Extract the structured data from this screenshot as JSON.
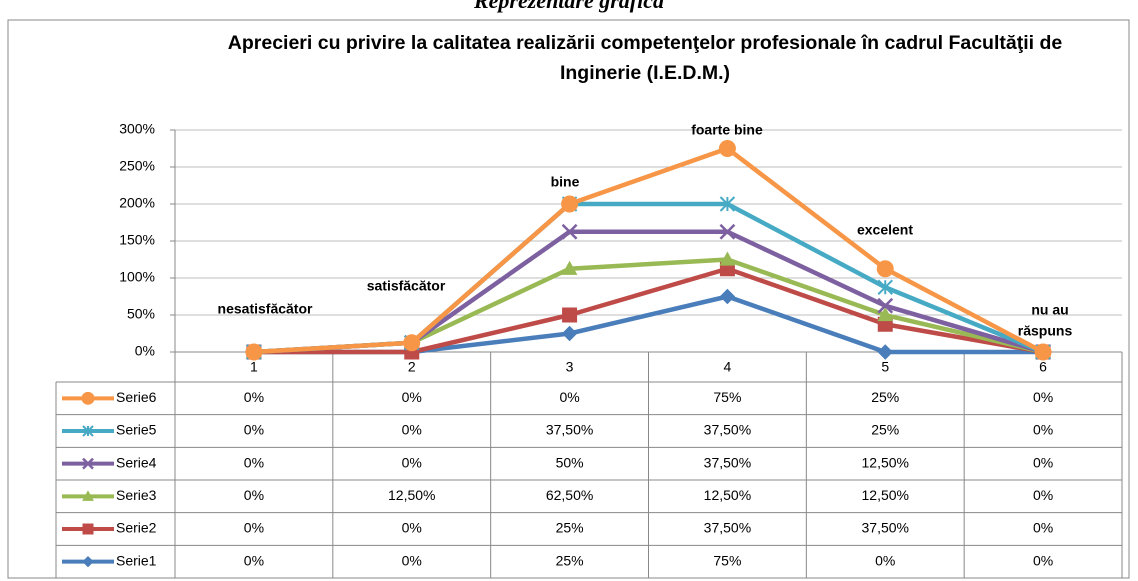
{
  "heading": "Reprezentare grafică",
  "chart_data": {
    "type": "stacked-line",
    "title": "Aprecieri cu privire la calitatea realizării competenţelor profesionale în cadrul Facultăţii de Inginerie (I.E.D.M.)",
    "categories": [
      "1",
      "2",
      "3",
      "4",
      "5",
      "6"
    ],
    "series": [
      {
        "name": "Serie1",
        "color": "#4a7ebb",
        "marker": "diamond",
        "values": [
          0,
          0,
          25,
          75,
          0,
          0
        ],
        "value_labels": [
          "0%",
          "0%",
          "25%",
          "75%",
          "0%",
          "0%"
        ]
      },
      {
        "name": "Serie2",
        "color": "#be4b48",
        "marker": "square",
        "values": [
          0,
          0,
          25,
          37.5,
          37.5,
          0
        ],
        "value_labels": [
          "0%",
          "0%",
          "25%",
          "37,50%",
          "37,50%",
          "0%"
        ]
      },
      {
        "name": "Serie3",
        "color": "#98b954",
        "marker": "triangle",
        "values": [
          0,
          12.5,
          62.5,
          12.5,
          12.5,
          0
        ],
        "value_labels": [
          "0%",
          "12,50%",
          "62,50%",
          "12,50%",
          "12,50%",
          "0%"
        ]
      },
      {
        "name": "Serie4",
        "color": "#7d60a0",
        "marker": "x",
        "values": [
          0,
          0,
          50,
          37.5,
          12.5,
          0
        ],
        "value_labels": [
          "0%",
          "0%",
          "50%",
          "37,50%",
          "12,50%",
          "0%"
        ]
      },
      {
        "name": "Serie5",
        "color": "#46aac5",
        "marker": "star",
        "values": [
          0,
          0,
          37.5,
          37.5,
          25,
          0
        ],
        "value_labels": [
          "0%",
          "0%",
          "37,50%",
          "37,50%",
          "25%",
          "0%"
        ]
      },
      {
        "name": "Serie6",
        "color": "#f79646",
        "marker": "circle",
        "values": [
          0,
          0,
          0,
          75,
          25,
          0
        ],
        "value_labels": [
          "0%",
          "0%",
          "0%",
          "75%",
          "25%",
          "0%"
        ]
      }
    ],
    "annotations": [
      "nesatisfăcător",
      "satisfăcător",
      "bine",
      "foarte bine",
      "excelent",
      "nu au",
      "răspuns"
    ],
    "ylim": [
      0,
      300
    ],
    "yticks": [
      {
        "value": 0,
        "label": "0%"
      },
      {
        "value": 50,
        "label": "50%"
      },
      {
        "value": 100,
        "label": "100%"
      },
      {
        "value": 150,
        "label": "150%"
      },
      {
        "value": 200,
        "label": "200%"
      },
      {
        "value": 250,
        "label": "250%"
      },
      {
        "value": 300,
        "label": "300%"
      }
    ],
    "grid": true,
    "legend": "table"
  }
}
